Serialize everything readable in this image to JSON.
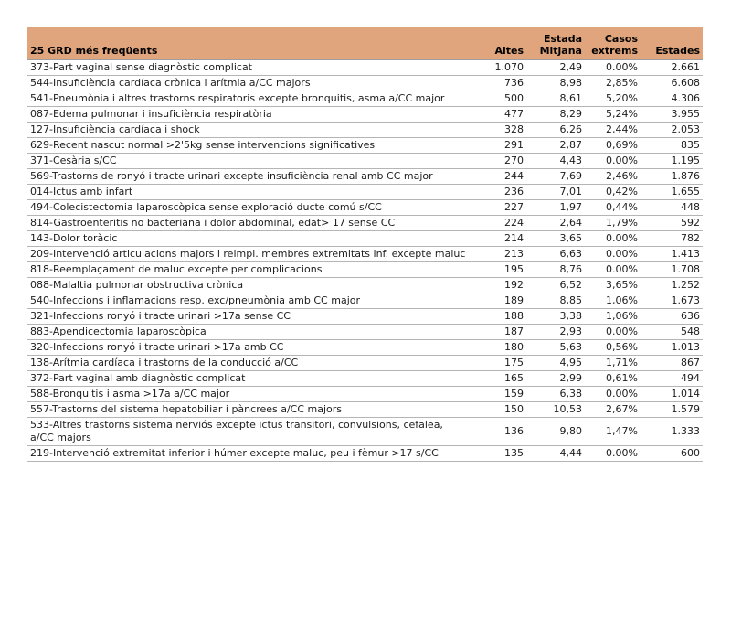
{
  "title": "25 GRD més freqüents",
  "table": {
    "header_labels": [
      "25 GRD més freqüents",
      "Altes",
      "Estada\nMitjana",
      "Casos\nextrems",
      "Estades"
    ]
  },
  "chart_data": {
    "type": "table",
    "title": "25 GRD més freqüents",
    "columns": [
      "25 GRD més freqüents",
      "Altes",
      "Estada Mitjana",
      "Casos extrems",
      "Estades"
    ],
    "rows": [
      [
        "373-Part vaginal sense diagnòstic complicat",
        "1.070",
        "2,49",
        "0.00%",
        "2.661"
      ],
      [
        "544-Insuficiència cardíaca crònica i arítmia a/CC majors",
        "736",
        "8,98",
        "2,85%",
        "6.608"
      ],
      [
        "541-Pneumònia i altres trastorns respiratoris excepte bronquitis, asma a/CC major",
        "500",
        "8,61",
        "5,20%",
        "4.306"
      ],
      [
        "087-Edema pulmonar i insuficiència respiratòria",
        "477",
        "8,29",
        "5,24%",
        "3.955"
      ],
      [
        "127-Insuficiència cardíaca i shock",
        "328",
        "6,26",
        "2,44%",
        "2.053"
      ],
      [
        "629-Recent nascut normal >2'5kg sense intervencions significatives",
        "291",
        "2,87",
        "0,69%",
        "835"
      ],
      [
        "371-Cesària s/CC",
        "270",
        "4,43",
        "0.00%",
        "1.195"
      ],
      [
        "569-Trastorns de ronyó i tracte urinari excepte insuficiència renal amb CC major",
        "244",
        "7,69",
        "2,46%",
        "1.876"
      ],
      [
        "014-Ictus amb infart",
        "236",
        "7,01",
        "0,42%",
        "1.655"
      ],
      [
        "494-Colecistectomia laparoscòpica sense exploració ducte comú s/CC",
        "227",
        "1,97",
        "0,44%",
        "448"
      ],
      [
        "814-Gastroenteritis no bacteriana i dolor abdominal, edat> 17 sense CC",
        "224",
        "2,64",
        "1,79%",
        "592"
      ],
      [
        "143-Dolor toràcic",
        "214",
        "3,65",
        "0.00%",
        "782"
      ],
      [
        "209-Intervenció articulacions majors i reimpl. membres extremitats inf. excepte maluc",
        "213",
        "6,63",
        "0.00%",
        "1.413"
      ],
      [
        "818-Reemplaçament de maluc excepte per complicacions",
        "195",
        "8,76",
        "0.00%",
        "1.708"
      ],
      [
        "088-Malaltia pulmonar obstructiva crònica",
        "192",
        "6,52",
        "3,65%",
        "1.252"
      ],
      [
        "540-Infeccions i inflamacions resp. exc/pneumònia amb CC major",
        "189",
        "8,85",
        "1,06%",
        "1.673"
      ],
      [
        "321-Infeccions ronyó i tracte urinari >17a sense CC",
        "188",
        "3,38",
        "1,06%",
        "636"
      ],
      [
        "883-Apendicectomia laparoscòpica",
        "187",
        "2,93",
        "0.00%",
        "548"
      ],
      [
        "320-Infeccions ronyó i tracte urinari >17a amb CC",
        "180",
        "5,63",
        "0,56%",
        "1.013"
      ],
      [
        "138-Arítmia cardíaca i trastorns de la conducció a/CC",
        "175",
        "4,95",
        "1,71%",
        "867"
      ],
      [
        "372-Part vaginal amb diagnòstic complicat",
        "165",
        "2,99",
        "0,61%",
        "494"
      ],
      [
        "588-Bronquitis i asma >17a a/CC major",
        "159",
        "6,38",
        "0.00%",
        "1.014"
      ],
      [
        "557-Trastorns del sistema hepatobiliar i pàncrees a/CC majors",
        "150",
        "10,53",
        "2,67%",
        "1.579"
      ],
      [
        "533-Altres trastorns sistema nerviós excepte ictus transitori, convulsions, cefalea,\na/CC majors",
        "136",
        "9,80",
        "1,47%",
        "1.333"
      ],
      [
        "219-Intervenció extremitat inferior i húmer excepte maluc, peu i fèmur >17 s/CC",
        "135",
        "4,44",
        "0.00%",
        "600"
      ]
    ]
  },
  "colors": {
    "header_bg": "#e0a57c",
    "header_text": "#000000",
    "row_border": "#b5b5b5",
    "body_text": "#1c1c1c",
    "page_bg": "#ffffff"
  }
}
